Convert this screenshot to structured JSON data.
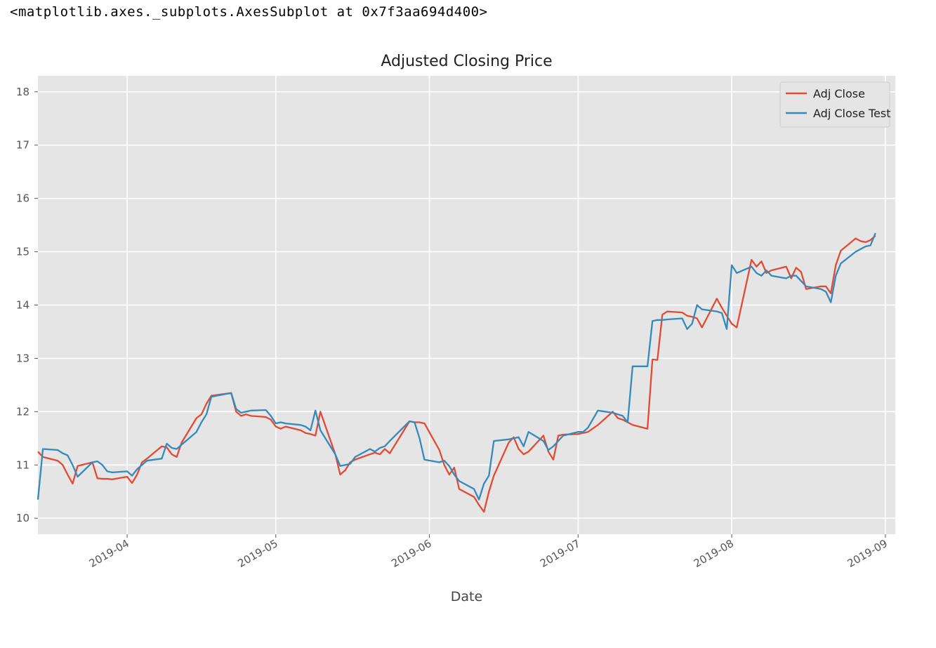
{
  "output_repr": "<matplotlib.axes._subplots.AxesSubplot at 0x7f3aa694d400>",
  "colors": {
    "adj_close": "#e24a33",
    "adj_close_test": "#348abd",
    "axes_bg": "#e5e5e5",
    "grid": "#ffffff"
  },
  "chart_data": {
    "type": "line",
    "title": "Adjusted Closing Price",
    "xlabel": "Date",
    "ylabel": "",
    "x_range": [
      "2019-03-14",
      "2019-09-03"
    ],
    "ylim": [
      9.7,
      18.3
    ],
    "y_ticks": [
      10,
      11,
      12,
      13,
      14,
      15,
      16,
      17,
      18
    ],
    "x_ticks": [
      "2019-04",
      "2019-05",
      "2019-06",
      "2019-07",
      "2019-08",
      "2019-09"
    ],
    "x_tick_dates": [
      "2019-04-01",
      "2019-05-01",
      "2019-06-01",
      "2019-07-01",
      "2019-08-01",
      "2019-09-01"
    ],
    "grid": true,
    "legend_position": "top-right",
    "series": [
      {
        "name": "Adj Close",
        "points": [
          [
            "2019-03-14",
            11.25
          ],
          [
            "2019-03-15",
            11.15
          ],
          [
            "2019-03-18",
            11.08
          ],
          [
            "2019-03-19",
            11.0
          ],
          [
            "2019-03-20",
            10.82
          ],
          [
            "2019-03-21",
            10.65
          ],
          [
            "2019-03-22",
            10.98
          ],
          [
            "2019-03-25",
            11.05
          ],
          [
            "2019-03-26",
            10.75
          ],
          [
            "2019-03-27",
            10.74
          ],
          [
            "2019-03-28",
            10.74
          ],
          [
            "2019-03-29",
            10.73
          ],
          [
            "2019-04-01",
            10.78
          ],
          [
            "2019-04-02",
            10.66
          ],
          [
            "2019-04-03",
            10.82
          ],
          [
            "2019-04-04",
            11.05
          ],
          [
            "2019-04-05",
            11.12
          ],
          [
            "2019-04-08",
            11.35
          ],
          [
            "2019-04-09",
            11.33
          ],
          [
            "2019-04-10",
            11.2
          ],
          [
            "2019-04-11",
            11.15
          ],
          [
            "2019-04-12",
            11.42
          ],
          [
            "2019-04-15",
            11.88
          ],
          [
            "2019-04-16",
            11.95
          ],
          [
            "2019-04-17",
            12.15
          ],
          [
            "2019-04-18",
            12.3
          ],
          [
            "2019-04-22",
            12.35
          ],
          [
            "2019-04-23",
            12.0
          ],
          [
            "2019-04-24",
            11.92
          ],
          [
            "2019-04-25",
            11.95
          ],
          [
            "2019-04-26",
            11.92
          ],
          [
            "2019-04-29",
            11.9
          ],
          [
            "2019-04-30",
            11.85
          ],
          [
            "2019-05-01",
            11.72
          ],
          [
            "2019-05-02",
            11.68
          ],
          [
            "2019-05-03",
            11.72
          ],
          [
            "2019-05-06",
            11.65
          ],
          [
            "2019-05-07",
            11.6
          ],
          [
            "2019-05-08",
            11.58
          ],
          [
            "2019-05-09",
            11.55
          ],
          [
            "2019-05-10",
            12.0
          ],
          [
            "2019-05-13",
            11.2
          ],
          [
            "2019-05-14",
            10.82
          ],
          [
            "2019-05-15",
            10.9
          ],
          [
            "2019-05-16",
            11.05
          ],
          [
            "2019-05-17",
            11.1
          ],
          [
            "2019-05-20",
            11.2
          ],
          [
            "2019-05-21",
            11.23
          ],
          [
            "2019-05-22",
            11.2
          ],
          [
            "2019-05-23",
            11.3
          ],
          [
            "2019-05-24",
            11.22
          ],
          [
            "2019-05-28",
            11.82
          ],
          [
            "2019-05-29",
            11.8
          ],
          [
            "2019-05-30",
            11.8
          ],
          [
            "2019-05-31",
            11.78
          ],
          [
            "2019-06-03",
            11.28
          ],
          [
            "2019-06-04",
            11.0
          ],
          [
            "2019-06-05",
            10.82
          ],
          [
            "2019-06-06",
            10.95
          ],
          [
            "2019-06-07",
            10.55
          ],
          [
            "2019-06-10",
            10.4
          ],
          [
            "2019-06-11",
            10.25
          ],
          [
            "2019-06-12",
            10.12
          ],
          [
            "2019-06-13",
            10.5
          ],
          [
            "2019-06-14",
            10.8
          ],
          [
            "2019-06-17",
            11.42
          ],
          [
            "2019-06-18",
            11.52
          ],
          [
            "2019-06-19",
            11.3
          ],
          [
            "2019-06-20",
            11.2
          ],
          [
            "2019-06-21",
            11.25
          ],
          [
            "2019-06-24",
            11.55
          ],
          [
            "2019-06-25",
            11.25
          ],
          [
            "2019-06-26",
            11.1
          ],
          [
            "2019-06-27",
            11.55
          ],
          [
            "2019-06-28",
            11.57
          ],
          [
            "2019-07-01",
            11.58
          ],
          [
            "2019-07-02",
            11.6
          ],
          [
            "2019-07-03",
            11.62
          ],
          [
            "2019-07-05",
            11.75
          ],
          [
            "2019-07-08",
            12.0
          ],
          [
            "2019-07-09",
            11.88
          ],
          [
            "2019-07-10",
            11.85
          ],
          [
            "2019-07-11",
            11.8
          ],
          [
            "2019-07-12",
            11.75
          ],
          [
            "2019-07-15",
            11.68
          ],
          [
            "2019-07-16",
            12.98
          ],
          [
            "2019-07-17",
            12.97
          ],
          [
            "2019-07-18",
            13.82
          ],
          [
            "2019-07-19",
            13.88
          ],
          [
            "2019-07-22",
            13.86
          ],
          [
            "2019-07-23",
            13.8
          ],
          [
            "2019-07-24",
            13.78
          ],
          [
            "2019-07-25",
            13.75
          ],
          [
            "2019-07-26",
            13.58
          ],
          [
            "2019-07-29",
            14.12
          ],
          [
            "2019-07-30",
            13.95
          ],
          [
            "2019-07-31",
            13.8
          ],
          [
            "2019-08-01",
            13.65
          ],
          [
            "2019-08-02",
            13.58
          ],
          [
            "2019-08-05",
            14.85
          ],
          [
            "2019-08-06",
            14.72
          ],
          [
            "2019-08-07",
            14.82
          ],
          [
            "2019-08-08",
            14.6
          ],
          [
            "2019-08-09",
            14.65
          ],
          [
            "2019-08-12",
            14.72
          ],
          [
            "2019-08-13",
            14.5
          ],
          [
            "2019-08-14",
            14.7
          ],
          [
            "2019-08-15",
            14.62
          ],
          [
            "2019-08-16",
            14.3
          ],
          [
            "2019-08-19",
            14.35
          ],
          [
            "2019-08-20",
            14.35
          ],
          [
            "2019-08-21",
            14.22
          ],
          [
            "2019-08-22",
            14.75
          ],
          [
            "2019-08-23",
            15.02
          ],
          [
            "2019-08-26",
            15.25
          ],
          [
            "2019-08-27",
            15.2
          ],
          [
            "2019-08-28",
            15.18
          ],
          [
            "2019-08-29",
            15.22
          ],
          [
            "2019-08-30",
            15.3
          ]
        ]
      },
      {
        "name": "Adj Close Test",
        "points": [
          [
            "2019-03-14",
            10.35
          ],
          [
            "2019-03-15",
            11.3
          ],
          [
            "2019-03-18",
            11.28
          ],
          [
            "2019-03-19",
            11.22
          ],
          [
            "2019-03-20",
            11.18
          ],
          [
            "2019-03-21",
            11.0
          ],
          [
            "2019-03-22",
            10.78
          ],
          [
            "2019-03-25",
            11.05
          ],
          [
            "2019-03-26",
            11.07
          ],
          [
            "2019-03-27",
            11.0
          ],
          [
            "2019-03-28",
            10.88
          ],
          [
            "2019-03-29",
            10.86
          ],
          [
            "2019-04-01",
            10.88
          ],
          [
            "2019-04-02",
            10.8
          ],
          [
            "2019-04-03",
            10.92
          ],
          [
            "2019-04-04",
            11.0
          ],
          [
            "2019-04-05",
            11.08
          ],
          [
            "2019-04-08",
            11.12
          ],
          [
            "2019-04-09",
            11.4
          ],
          [
            "2019-04-10",
            11.32
          ],
          [
            "2019-04-11",
            11.3
          ],
          [
            "2019-04-12",
            11.38
          ],
          [
            "2019-04-15",
            11.62
          ],
          [
            "2019-04-16",
            11.8
          ],
          [
            "2019-04-17",
            11.95
          ],
          [
            "2019-04-18",
            12.28
          ],
          [
            "2019-04-22",
            12.35
          ],
          [
            "2019-04-23",
            12.05
          ],
          [
            "2019-04-24",
            11.98
          ],
          [
            "2019-04-25",
            12.0
          ],
          [
            "2019-04-26",
            12.02
          ],
          [
            "2019-04-29",
            12.03
          ],
          [
            "2019-04-30",
            11.92
          ],
          [
            "2019-05-01",
            11.78
          ],
          [
            "2019-05-02",
            11.8
          ],
          [
            "2019-05-03",
            11.78
          ],
          [
            "2019-05-06",
            11.75
          ],
          [
            "2019-05-07",
            11.72
          ],
          [
            "2019-05-08",
            11.65
          ],
          [
            "2019-05-09",
            12.02
          ],
          [
            "2019-05-10",
            11.65
          ],
          [
            "2019-05-13",
            11.2
          ],
          [
            "2019-05-14",
            10.98
          ],
          [
            "2019-05-15",
            11.0
          ],
          [
            "2019-05-16",
            11.02
          ],
          [
            "2019-05-17",
            11.15
          ],
          [
            "2019-05-20",
            11.3
          ],
          [
            "2019-05-21",
            11.25
          ],
          [
            "2019-05-22",
            11.32
          ],
          [
            "2019-05-23",
            11.35
          ],
          [
            "2019-05-24",
            11.45
          ],
          [
            "2019-05-28",
            11.82
          ],
          [
            "2019-05-29",
            11.8
          ],
          [
            "2019-05-30",
            11.5
          ],
          [
            "2019-05-31",
            11.1
          ],
          [
            "2019-06-03",
            11.05
          ],
          [
            "2019-06-04",
            11.08
          ],
          [
            "2019-06-05",
            10.98
          ],
          [
            "2019-06-06",
            10.82
          ],
          [
            "2019-06-07",
            10.7
          ],
          [
            "2019-06-10",
            10.55
          ],
          [
            "2019-06-11",
            10.35
          ],
          [
            "2019-06-12",
            10.65
          ],
          [
            "2019-06-13",
            10.8
          ],
          [
            "2019-06-14",
            11.45
          ],
          [
            "2019-06-17",
            11.48
          ],
          [
            "2019-06-18",
            11.5
          ],
          [
            "2019-06-19",
            11.52
          ],
          [
            "2019-06-20",
            11.35
          ],
          [
            "2019-06-21",
            11.62
          ],
          [
            "2019-06-24",
            11.45
          ],
          [
            "2019-06-25",
            11.28
          ],
          [
            "2019-06-26",
            11.35
          ],
          [
            "2019-06-27",
            11.45
          ],
          [
            "2019-06-28",
            11.55
          ],
          [
            "2019-07-01",
            11.62
          ],
          [
            "2019-07-02",
            11.62
          ],
          [
            "2019-07-03",
            11.7
          ],
          [
            "2019-07-05",
            12.02
          ],
          [
            "2019-07-08",
            11.98
          ],
          [
            "2019-07-09",
            11.95
          ],
          [
            "2019-07-10",
            11.92
          ],
          [
            "2019-07-11",
            11.8
          ],
          [
            "2019-07-12",
            12.85
          ],
          [
            "2019-07-15",
            12.85
          ],
          [
            "2019-07-16",
            13.7
          ],
          [
            "2019-07-17",
            13.72
          ],
          [
            "2019-07-18",
            13.72
          ],
          [
            "2019-07-19",
            13.73
          ],
          [
            "2019-07-22",
            13.75
          ],
          [
            "2019-07-23",
            13.55
          ],
          [
            "2019-07-24",
            13.65
          ],
          [
            "2019-07-25",
            14.0
          ],
          [
            "2019-07-26",
            13.92
          ],
          [
            "2019-07-29",
            13.88
          ],
          [
            "2019-07-30",
            13.85
          ],
          [
            "2019-07-31",
            13.55
          ],
          [
            "2019-08-01",
            14.75
          ],
          [
            "2019-08-02",
            14.6
          ],
          [
            "2019-08-05",
            14.72
          ],
          [
            "2019-08-06",
            14.6
          ],
          [
            "2019-08-07",
            14.55
          ],
          [
            "2019-08-08",
            14.65
          ],
          [
            "2019-08-09",
            14.55
          ],
          [
            "2019-08-12",
            14.5
          ],
          [
            "2019-08-13",
            14.55
          ],
          [
            "2019-08-14",
            14.55
          ],
          [
            "2019-08-15",
            14.45
          ],
          [
            "2019-08-16",
            14.35
          ],
          [
            "2019-08-19",
            14.3
          ],
          [
            "2019-08-20",
            14.25
          ],
          [
            "2019-08-21",
            14.05
          ],
          [
            "2019-08-22",
            14.55
          ],
          [
            "2019-08-23",
            14.78
          ],
          [
            "2019-08-26",
            15.0
          ],
          [
            "2019-08-27",
            15.05
          ],
          [
            "2019-08-28",
            15.1
          ],
          [
            "2019-08-29",
            15.12
          ],
          [
            "2019-08-30",
            15.35
          ]
        ]
      }
    ]
  }
}
